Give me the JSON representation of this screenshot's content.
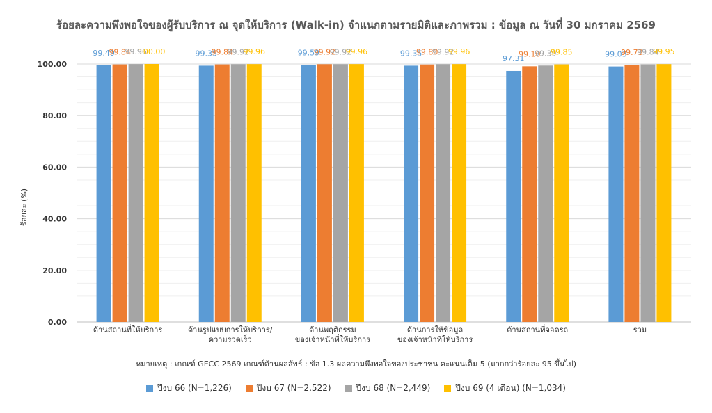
{
  "chart_data": {
    "type": "bar",
    "title": "ร้อยละความพึงพอใจของผู้รับบริการ ณ จุดให้บริการ (Walk-in) จำแนกตามรายมิติและภาพรวม  : ข้อมูล ณ วันที่ 30 มกราคม 2569",
    "ylabel": "ร้อยละ (%)",
    "xlabel": "",
    "ylim": [
      0,
      100
    ],
    "yticks": [
      "0.00",
      "20.00",
      "40.00",
      "60.00",
      "80.00",
      "100.00"
    ],
    "grid": true,
    "legend_position": "bottom",
    "categories": [
      [
        "ด้านสถานที่ให้บริการ"
      ],
      [
        "ด้านรูปแบบการให้บริการ/",
        "ความรวดเร็ว"
      ],
      [
        "ด้านพฤติกรรม",
        "ของเจ้าหน้าที่ให้บริการ"
      ],
      [
        "ด้านการให้ข้อมูล",
        "ของเจ้าหน้าที่ให้บริการ"
      ],
      [
        "ด้านสถานที่จอดรถ"
      ],
      [
        "รวม"
      ]
    ],
    "series": [
      {
        "name": "ปีงบ 66 (N=1,226)",
        "color": "#5B9BD5",
        "values": [
          99.49,
          99.35,
          99.59,
          99.35,
          97.31,
          99.03
        ],
        "labels": [
          "99.49",
          "99.35",
          "99.59",
          "99.35",
          "97.31",
          "99.03"
        ]
      },
      {
        "name": "ปีงบ 67 (N=2,522)",
        "color": "#ED7D31",
        "values": [
          99.84,
          99.84,
          99.92,
          99.8,
          99.1,
          99.73
        ],
        "labels": [
          "99.84",
          "99.84",
          "99.92",
          "99.80",
          "99.10",
          "99.73"
        ]
      },
      {
        "name": "ปีงบ 68 (N=2,449)",
        "color": "#A5A5A5",
        "values": [
          99.96,
          99.92,
          99.92,
          99.92,
          99.39,
          99.84
        ],
        "labels": [
          "99.96",
          "99.92",
          "99.92",
          "99.92",
          "99.39",
          "99.84"
        ]
      },
      {
        "name": "ปีงบ 69 (4 เดือน) (N=1,034)",
        "color": "#FFC000",
        "values": [
          100.0,
          99.96,
          99.96,
          99.96,
          99.85,
          99.95
        ],
        "labels": [
          "100.00",
          "99.96",
          "99.96",
          "99.96",
          "99.85",
          "99.95"
        ]
      }
    ],
    "footnote": "หมายเหตุ : เกณฑ์ GECC 2569 เกณฑ์ด้านผลลัพธ์ : ข้อ 1.3 ผลความพึงพอใจของประชาชน คะแนนเต็ม 5 (มากกว่าร้อยละ 95 ขึ้นไป)"
  }
}
